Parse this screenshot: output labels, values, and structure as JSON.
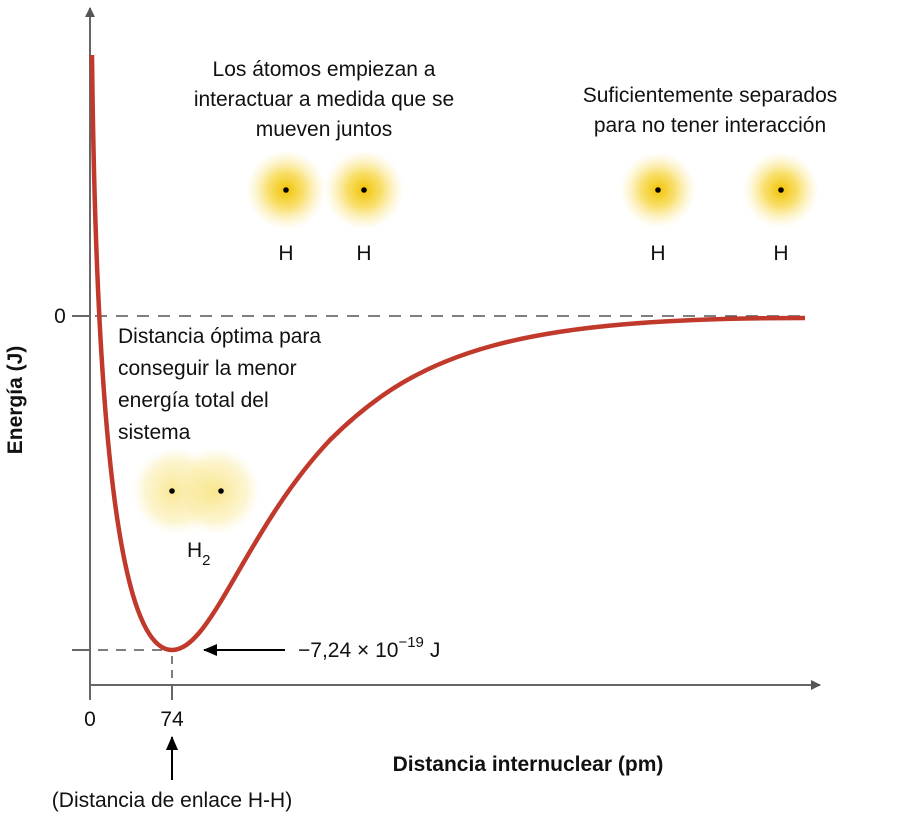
{
  "y_axis": {
    "label": "Energía (J)",
    "tick": "0"
  },
  "x_axis": {
    "label": "Distancia internuclear (pm)",
    "ticks": [
      "0",
      "74"
    ],
    "note": "(Distancia de enlace H-H)"
  },
  "annotations": {
    "interacting": [
      "Los átomos empiezan a",
      "interactuar a medida que se",
      "mueven juntos"
    ],
    "separated": [
      "Suficientemente separados",
      "para no tener interacción"
    ],
    "optimal": [
      "Distancia óptima para",
      "conseguir la menor",
      "energía total del",
      "sistema"
    ]
  },
  "atoms": {
    "interacting": [
      "H",
      "H"
    ],
    "separated": [
      "H",
      "H"
    ],
    "molecule": {
      "symbol": "H",
      "subscript": "2"
    }
  },
  "minimum": {
    "mantissa": "−7,24 × 10",
    "exponent": "−19",
    "unit": "J"
  }
}
